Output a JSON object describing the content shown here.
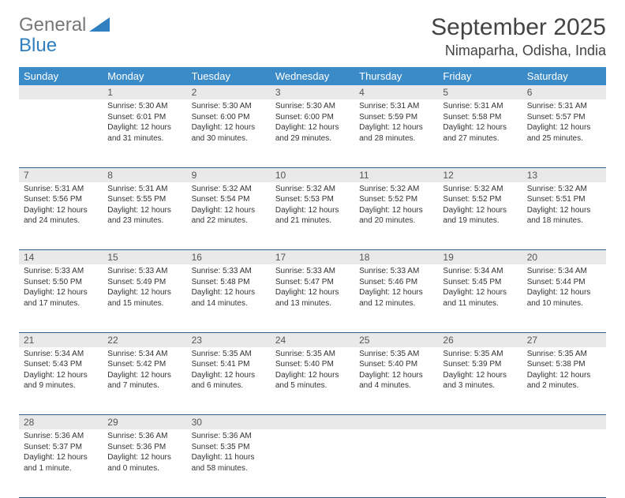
{
  "brand": {
    "part1": "General",
    "part2": "Blue",
    "logo_color": "#2f7fc1"
  },
  "header": {
    "month_title": "September 2025",
    "location": "Nimaparha, Odisha, India"
  },
  "colors": {
    "header_bg": "#3b8bc9",
    "header_fg": "#ffffff",
    "daynum_bg": "#e9e9e9",
    "row_divider": "#2f5f8f",
    "text": "#333333"
  },
  "weekdays": [
    "Sunday",
    "Monday",
    "Tuesday",
    "Wednesday",
    "Thursday",
    "Friday",
    "Saturday"
  ],
  "weeks": [
    {
      "nums": [
        "",
        "1",
        "2",
        "3",
        "4",
        "5",
        "6"
      ],
      "cells": [
        null,
        {
          "sunrise": "Sunrise: 5:30 AM",
          "sunset": "Sunset: 6:01 PM",
          "day1": "Daylight: 12 hours",
          "day2": "and 31 minutes."
        },
        {
          "sunrise": "Sunrise: 5:30 AM",
          "sunset": "Sunset: 6:00 PM",
          "day1": "Daylight: 12 hours",
          "day2": "and 30 minutes."
        },
        {
          "sunrise": "Sunrise: 5:30 AM",
          "sunset": "Sunset: 6:00 PM",
          "day1": "Daylight: 12 hours",
          "day2": "and 29 minutes."
        },
        {
          "sunrise": "Sunrise: 5:31 AM",
          "sunset": "Sunset: 5:59 PM",
          "day1": "Daylight: 12 hours",
          "day2": "and 28 minutes."
        },
        {
          "sunrise": "Sunrise: 5:31 AM",
          "sunset": "Sunset: 5:58 PM",
          "day1": "Daylight: 12 hours",
          "day2": "and 27 minutes."
        },
        {
          "sunrise": "Sunrise: 5:31 AM",
          "sunset": "Sunset: 5:57 PM",
          "day1": "Daylight: 12 hours",
          "day2": "and 25 minutes."
        }
      ]
    },
    {
      "nums": [
        "7",
        "8",
        "9",
        "10",
        "11",
        "12",
        "13"
      ],
      "cells": [
        {
          "sunrise": "Sunrise: 5:31 AM",
          "sunset": "Sunset: 5:56 PM",
          "day1": "Daylight: 12 hours",
          "day2": "and 24 minutes."
        },
        {
          "sunrise": "Sunrise: 5:31 AM",
          "sunset": "Sunset: 5:55 PM",
          "day1": "Daylight: 12 hours",
          "day2": "and 23 minutes."
        },
        {
          "sunrise": "Sunrise: 5:32 AM",
          "sunset": "Sunset: 5:54 PM",
          "day1": "Daylight: 12 hours",
          "day2": "and 22 minutes."
        },
        {
          "sunrise": "Sunrise: 5:32 AM",
          "sunset": "Sunset: 5:53 PM",
          "day1": "Daylight: 12 hours",
          "day2": "and 21 minutes."
        },
        {
          "sunrise": "Sunrise: 5:32 AM",
          "sunset": "Sunset: 5:52 PM",
          "day1": "Daylight: 12 hours",
          "day2": "and 20 minutes."
        },
        {
          "sunrise": "Sunrise: 5:32 AM",
          "sunset": "Sunset: 5:52 PM",
          "day1": "Daylight: 12 hours",
          "day2": "and 19 minutes."
        },
        {
          "sunrise": "Sunrise: 5:32 AM",
          "sunset": "Sunset: 5:51 PM",
          "day1": "Daylight: 12 hours",
          "day2": "and 18 minutes."
        }
      ]
    },
    {
      "nums": [
        "14",
        "15",
        "16",
        "17",
        "18",
        "19",
        "20"
      ],
      "cells": [
        {
          "sunrise": "Sunrise: 5:33 AM",
          "sunset": "Sunset: 5:50 PM",
          "day1": "Daylight: 12 hours",
          "day2": "and 17 minutes."
        },
        {
          "sunrise": "Sunrise: 5:33 AM",
          "sunset": "Sunset: 5:49 PM",
          "day1": "Daylight: 12 hours",
          "day2": "and 15 minutes."
        },
        {
          "sunrise": "Sunrise: 5:33 AM",
          "sunset": "Sunset: 5:48 PM",
          "day1": "Daylight: 12 hours",
          "day2": "and 14 minutes."
        },
        {
          "sunrise": "Sunrise: 5:33 AM",
          "sunset": "Sunset: 5:47 PM",
          "day1": "Daylight: 12 hours",
          "day2": "and 13 minutes."
        },
        {
          "sunrise": "Sunrise: 5:33 AM",
          "sunset": "Sunset: 5:46 PM",
          "day1": "Daylight: 12 hours",
          "day2": "and 12 minutes."
        },
        {
          "sunrise": "Sunrise: 5:34 AM",
          "sunset": "Sunset: 5:45 PM",
          "day1": "Daylight: 12 hours",
          "day2": "and 11 minutes."
        },
        {
          "sunrise": "Sunrise: 5:34 AM",
          "sunset": "Sunset: 5:44 PM",
          "day1": "Daylight: 12 hours",
          "day2": "and 10 minutes."
        }
      ]
    },
    {
      "nums": [
        "21",
        "22",
        "23",
        "24",
        "25",
        "26",
        "27"
      ],
      "cells": [
        {
          "sunrise": "Sunrise: 5:34 AM",
          "sunset": "Sunset: 5:43 PM",
          "day1": "Daylight: 12 hours",
          "day2": "and 9 minutes."
        },
        {
          "sunrise": "Sunrise: 5:34 AM",
          "sunset": "Sunset: 5:42 PM",
          "day1": "Daylight: 12 hours",
          "day2": "and 7 minutes."
        },
        {
          "sunrise": "Sunrise: 5:35 AM",
          "sunset": "Sunset: 5:41 PM",
          "day1": "Daylight: 12 hours",
          "day2": "and 6 minutes."
        },
        {
          "sunrise": "Sunrise: 5:35 AM",
          "sunset": "Sunset: 5:40 PM",
          "day1": "Daylight: 12 hours",
          "day2": "and 5 minutes."
        },
        {
          "sunrise": "Sunrise: 5:35 AM",
          "sunset": "Sunset: 5:40 PM",
          "day1": "Daylight: 12 hours",
          "day2": "and 4 minutes."
        },
        {
          "sunrise": "Sunrise: 5:35 AM",
          "sunset": "Sunset: 5:39 PM",
          "day1": "Daylight: 12 hours",
          "day2": "and 3 minutes."
        },
        {
          "sunrise": "Sunrise: 5:35 AM",
          "sunset": "Sunset: 5:38 PM",
          "day1": "Daylight: 12 hours",
          "day2": "and 2 minutes."
        }
      ]
    },
    {
      "nums": [
        "28",
        "29",
        "30",
        "",
        "",
        "",
        ""
      ],
      "cells": [
        {
          "sunrise": "Sunrise: 5:36 AM",
          "sunset": "Sunset: 5:37 PM",
          "day1": "Daylight: 12 hours",
          "day2": "and 1 minute."
        },
        {
          "sunrise": "Sunrise: 5:36 AM",
          "sunset": "Sunset: 5:36 PM",
          "day1": "Daylight: 12 hours",
          "day2": "and 0 minutes."
        },
        {
          "sunrise": "Sunrise: 5:36 AM",
          "sunset": "Sunset: 5:35 PM",
          "day1": "Daylight: 11 hours",
          "day2": "and 58 minutes."
        },
        null,
        null,
        null,
        null
      ]
    }
  ]
}
